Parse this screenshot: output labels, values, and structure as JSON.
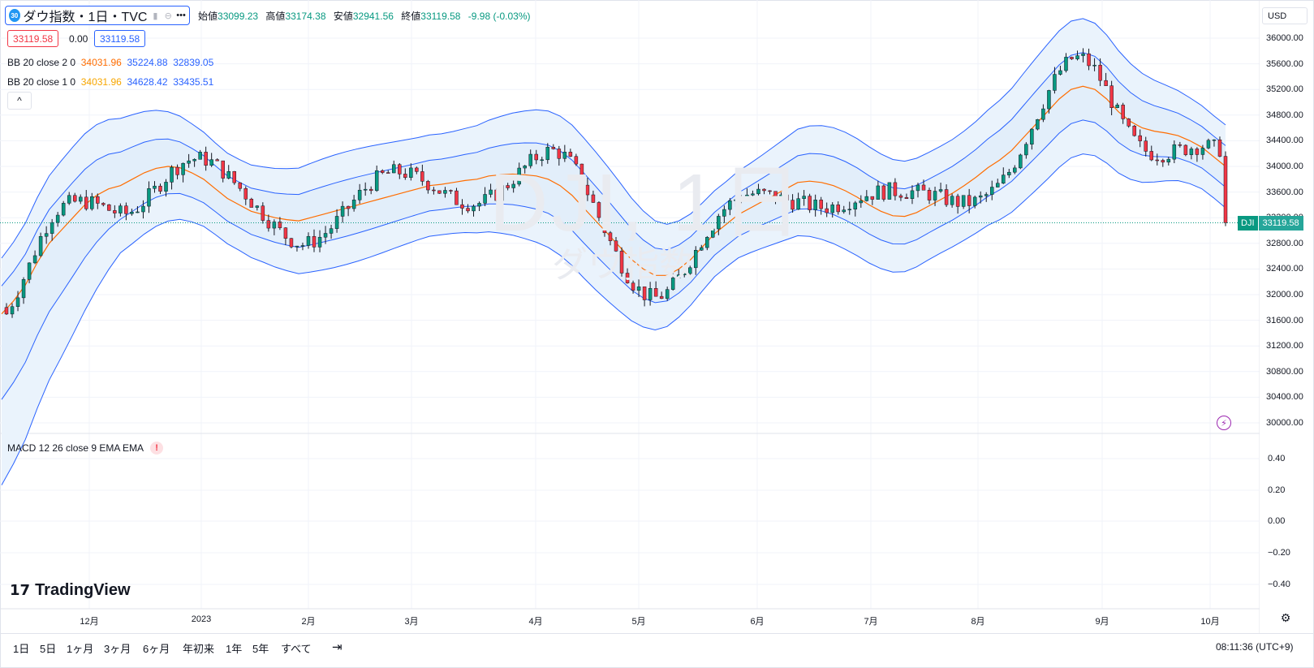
{
  "symbol": {
    "badge": "30",
    "title": "ダウ指数・1日・TVC",
    "ohlc": [
      {
        "label": "始値",
        "value": "33099.23"
      },
      {
        "label": "高値",
        "value": "33174.38"
      },
      {
        "label": "安値",
        "value": "32941.56"
      },
      {
        "label": "終値",
        "value": "33119.58"
      }
    ],
    "change": "-9.98 (-0.03%)"
  },
  "quotes": {
    "bid": "33119.58",
    "spread": "0.00",
    "ask": "33119.58"
  },
  "indicators": {
    "bb2": {
      "label": "BB 20 close 2 0",
      "basis": "34031.96",
      "upper": "35224.88",
      "lower": "32839.05"
    },
    "bb1": {
      "label": "BB 20 close 1 0",
      "basis": "34031.96",
      "upper": "34628.42",
      "lower": "33435.51"
    },
    "collapse": "^",
    "macd": {
      "label": "MACD 12 26 close 9 EMA EMA",
      "warn": "!"
    }
  },
  "watermark": {
    "line1": "DJI, 1日",
    "line2": "ダウ指数"
  },
  "price_scale": {
    "currency": "USD",
    "ticks": [
      "36000.00",
      "35600.00",
      "35200.00",
      "34800.00",
      "34400.00",
      "34000.00",
      "33600.00",
      "33200.00",
      "32800.00",
      "32400.00",
      "32000.00",
      "31600.00",
      "31200.00",
      "30800.00",
      "30400.00",
      "30000.00"
    ],
    "last_symbol": "DJI",
    "last_price": "33119.58",
    "macd_ticks": [
      "0.40",
      "0.20",
      "0.00",
      "−0.20",
      "−0.40"
    ]
  },
  "time_axis": {
    "labels": [
      "12月",
      "2023",
      "2月",
      "3月",
      "4月",
      "5月",
      "6月",
      "7月",
      "8月",
      "9月",
      "10月"
    ]
  },
  "branding": "TradingView",
  "toolbar": {
    "ranges": [
      "1日",
      "5日",
      "1ヶ月",
      "3ヶ月",
      "6ヶ月",
      "年初来",
      "1年",
      "5年",
      "すべて"
    ],
    "clock": "08:11:36 (UTC+9)"
  },
  "colors": {
    "up": "#089981",
    "down": "#f23645",
    "bb_band": "#2962ff",
    "basis": "#ff6d00",
    "fill": "#e3effa"
  },
  "chart_data": {
    "type": "candlestick",
    "ylim": [
      30000,
      36000
    ],
    "series": [
      {
        "name": "BB 20 close 2 0 basis",
        "values": [
          31700,
          31900,
          32150,
          32500,
          32800,
          33000,
          33200,
          33400,
          33550,
          33650,
          33700,
          33800,
          33900,
          33970,
          34000,
          33980,
          33900,
          33800,
          33650,
          33500,
          33400,
          33300,
          33250,
          33200,
          33170,
          33150,
          33200,
          33250,
          33300,
          33350,
          33400,
          33450,
          33500,
          33550,
          33600,
          33650,
          33700,
          33720,
          33750,
          33780,
          33800,
          33850,
          33870,
          33880,
          33870,
          33850,
          33800,
          33700,
          33550,
          33350,
          33150,
          32950,
          32750,
          32550,
          32400,
          32300,
          32300,
          32400,
          32550,
          32750,
          32950,
          33100,
          33250,
          33350,
          33450,
          33550,
          33650,
          33750,
          33770,
          33750,
          33700,
          33620,
          33520,
          33400,
          33300,
          33230,
          33220,
          33280,
          33380,
          33480,
          33580,
          33700,
          33830,
          33980,
          34100,
          34250,
          34450,
          34650,
          34850,
          35050,
          35200,
          35250,
          35200,
          35050,
          34850,
          34700,
          34600,
          34550,
          34520,
          34480,
          34400,
          34300,
          34150,
          34000
        ]
      }
    ],
    "last": 33119.58
  }
}
